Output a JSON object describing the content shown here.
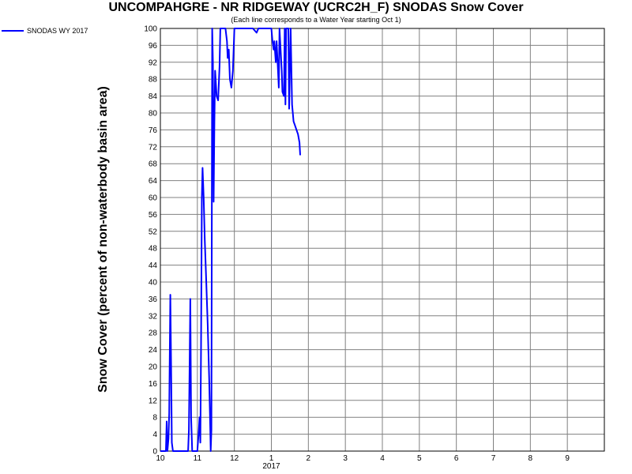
{
  "chart_data": {
    "type": "line",
    "title": "UNCOMPAHGRE - NR RIDGEWAY (UCRC2H_F) SNODAS Snow Cover",
    "subtitle": "(Each line corresponds to a Water Year starting Oct 1)",
    "ylabel": "Snow Cover (percent of non-waterbody basin area)",
    "xlabel": "",
    "x_ticks": [
      "10",
      "11",
      "12",
      "1",
      "2",
      "3",
      "4",
      "5",
      "6",
      "7",
      "8",
      "9"
    ],
    "x_year_label": "2017",
    "y_ticks": [
      0,
      4,
      8,
      12,
      16,
      20,
      24,
      28,
      32,
      36,
      40,
      44,
      48,
      52,
      56,
      60,
      64,
      68,
      72,
      76,
      80,
      84,
      88,
      92,
      96,
      100
    ],
    "ylim": [
      0,
      100
    ],
    "xlim_months": [
      0,
      12
    ],
    "grid": true,
    "legend_position": "top-left outside",
    "series": [
      {
        "name": "SNODAS WY 2017",
        "color": "#0000ff",
        "points": [
          [
            0.0,
            0
          ],
          [
            0.15,
            0
          ],
          [
            0.17,
            7
          ],
          [
            0.19,
            0
          ],
          [
            0.22,
            3
          ],
          [
            0.24,
            9
          ],
          [
            0.27,
            37
          ],
          [
            0.29,
            20
          ],
          [
            0.31,
            2
          ],
          [
            0.34,
            0
          ],
          [
            0.45,
            0
          ],
          [
            0.6,
            0
          ],
          [
            0.75,
            0
          ],
          [
            0.77,
            5
          ],
          [
            0.79,
            20
          ],
          [
            0.81,
            36
          ],
          [
            0.83,
            8
          ],
          [
            0.86,
            0
          ],
          [
            1.0,
            0
          ],
          [
            1.04,
            5
          ],
          [
            1.06,
            8
          ],
          [
            1.08,
            2
          ],
          [
            1.1,
            25
          ],
          [
            1.12,
            60
          ],
          [
            1.14,
            67
          ],
          [
            1.17,
            60
          ],
          [
            1.2,
            50
          ],
          [
            1.24,
            40
          ],
          [
            1.28,
            30
          ],
          [
            1.32,
            17
          ],
          [
            1.35,
            5
          ],
          [
            1.36,
            0
          ],
          [
            1.38,
            5
          ],
          [
            1.4,
            100
          ],
          [
            1.42,
            92
          ],
          [
            1.44,
            59
          ],
          [
            1.46,
            78
          ],
          [
            1.48,
            90
          ],
          [
            1.52,
            84
          ],
          [
            1.56,
            83
          ],
          [
            1.6,
            91
          ],
          [
            1.62,
            100
          ],
          [
            1.7,
            100
          ],
          [
            1.76,
            100
          ],
          [
            1.8,
            97
          ],
          [
            1.82,
            93
          ],
          [
            1.85,
            95
          ],
          [
            1.88,
            88
          ],
          [
            1.92,
            86
          ],
          [
            1.96,
            90
          ],
          [
            2.0,
            100
          ],
          [
            2.2,
            100
          ],
          [
            2.5,
            100
          ],
          [
            2.6,
            99
          ],
          [
            2.65,
            100
          ],
          [
            3.0,
            100
          ],
          [
            3.03,
            97
          ],
          [
            3.06,
            95
          ],
          [
            3.08,
            97
          ],
          [
            3.12,
            92
          ],
          [
            3.14,
            97
          ],
          [
            3.18,
            90
          ],
          [
            3.2,
            86
          ],
          [
            3.22,
            100
          ],
          [
            3.28,
            90
          ],
          [
            3.3,
            85
          ],
          [
            3.34,
            84
          ],
          [
            3.36,
            100
          ],
          [
            3.38,
            82
          ],
          [
            3.4,
            100
          ],
          [
            3.42,
            100
          ],
          [
            3.44,
            100
          ],
          [
            3.46,
            100
          ],
          [
            3.48,
            81
          ],
          [
            3.5,
            90
          ],
          [
            3.52,
            100
          ],
          [
            3.56,
            82
          ],
          [
            3.6,
            78
          ],
          [
            3.64,
            77
          ],
          [
            3.68,
            76
          ],
          [
            3.72,
            75
          ],
          [
            3.76,
            73
          ],
          [
            3.78,
            70
          ]
        ]
      }
    ]
  }
}
